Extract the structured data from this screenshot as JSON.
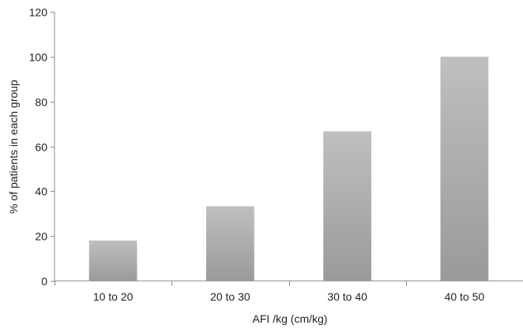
{
  "chart_data": {
    "type": "bar",
    "title": "",
    "xlabel": "AFI /kg (cm/kg)",
    "ylabel": "% of patients in each group",
    "categories": [
      "10 to 20",
      "20 to 30",
      "30 to 40",
      "40 to 50"
    ],
    "values": [
      18,
      33.3,
      66.7,
      100
    ],
    "ylim": [
      0,
      120
    ],
    "yticks": [
      "0",
      "20",
      "40",
      "60",
      "80",
      "100",
      "120"
    ],
    "grid": false,
    "legend": "none",
    "colors": {
      "bar_top": "#bfbfc1",
      "bar_bottom": "#9a9a9c",
      "axis": "#8c8c8c"
    }
  }
}
